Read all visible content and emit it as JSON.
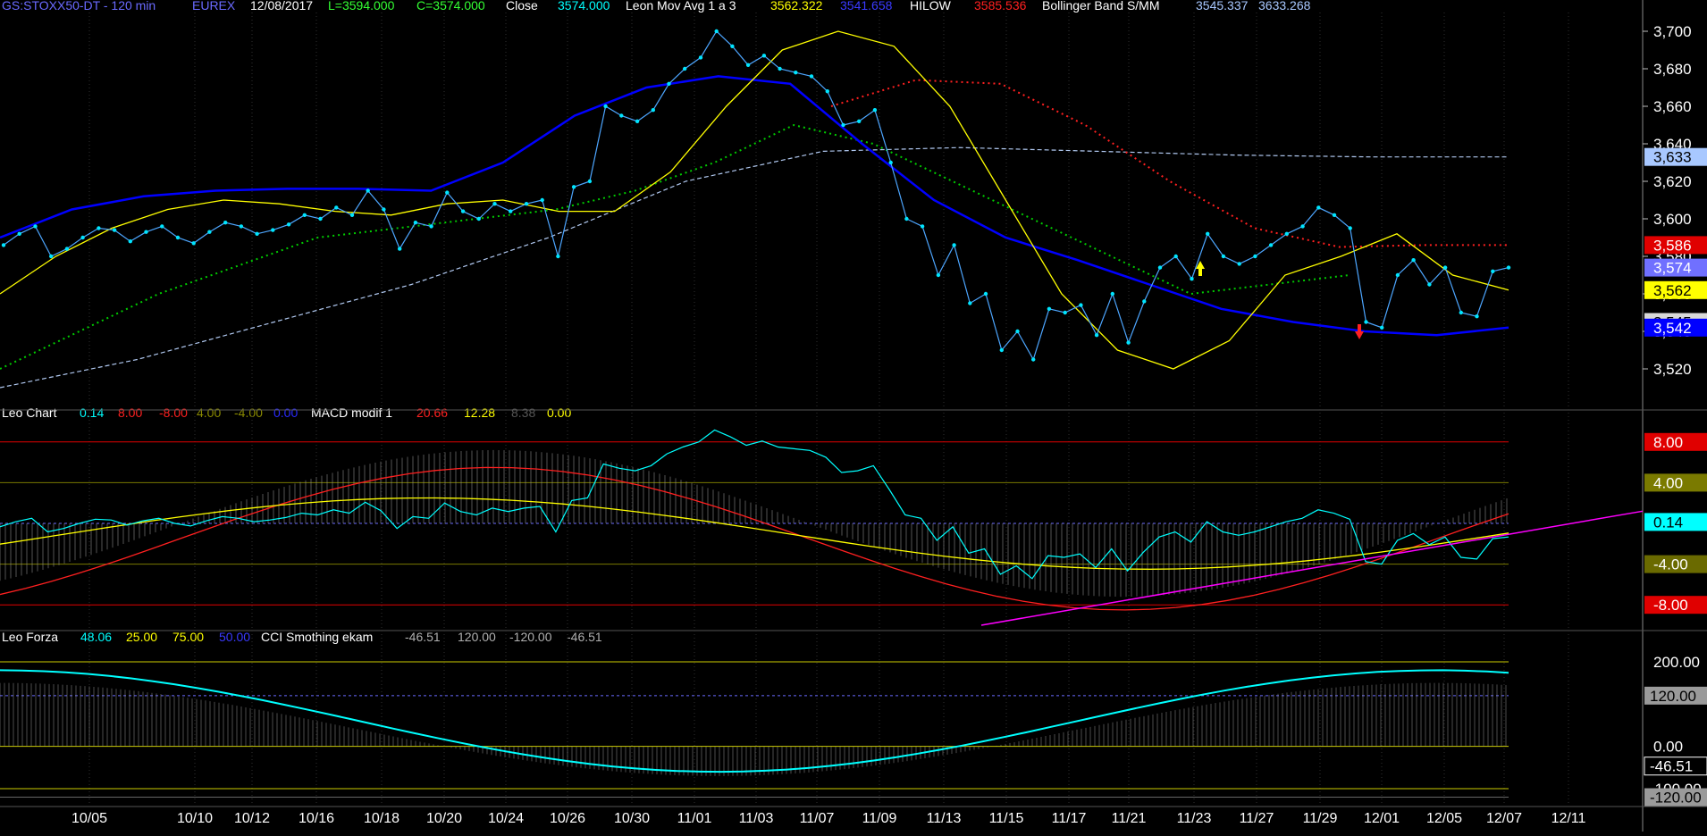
{
  "header": {
    "symbol": "GS:STOXX50-DT - 120 min",
    "exchange": "EUREX",
    "date": "12/08/2017",
    "low": "L=3594.000",
    "close_eq": "C=3574.000",
    "close_label": "Close",
    "close_val": "3574.000",
    "mavg_label": "Leon Mov Avg 1 a 3",
    "mavg_v1": "3562.322",
    "mavg_v2": "3541.658",
    "hilow_label": "HILOW",
    "hilow_val": "3585.536",
    "boll_label": "Bollinger Band S/MM",
    "boll_v1": "3545.337",
    "boll_v2": "3633.268"
  },
  "panel2_header": {
    "name": "Leo Chart",
    "v1": "0.14",
    "v2": "8.00",
    "v3": "-8.00",
    "v4": "4.00",
    "v5": "-4.00",
    "v6": "0.00",
    "macd_label": "MACD modif 1",
    "m1": "20.66",
    "m2": "12.28",
    "m3": "8.38",
    "m4": "0.00"
  },
  "panel3_header": {
    "name": "Leo Forza",
    "v1": "48.06",
    "v2": "25.00",
    "v3": "75.00",
    "v4": "50.00",
    "cci_label": "CCI Smothing ekam",
    "c1": "-46.51",
    "c2": "120.00",
    "c3": "-120.00",
    "c4": "-46.51"
  },
  "price_axis": {
    "ticks": [
      "3,700",
      "3,680",
      "3,660",
      "3,640",
      "3,620",
      "3,600",
      "3,580",
      "3,560",
      "3,540",
      "3,520"
    ],
    "tick_values": [
      3700,
      3680,
      3660,
      3640,
      3620,
      3600,
      3580,
      3560,
      3540,
      3520
    ],
    "badges": [
      {
        "text": "3,633",
        "value": 3633,
        "bg": "#a8c8ff",
        "fg": "#000"
      },
      {
        "text": "3,586",
        "value": 3586,
        "bg": "#e00000",
        "fg": "#fff"
      },
      {
        "text": "3,574",
        "value": 3574,
        "bg": "#7070ff",
        "fg": "#fff"
      },
      {
        "text": "3,562",
        "value": 3562,
        "bg": "#ffff00",
        "fg": "#000"
      },
      {
        "text": "3,545",
        "value": 3545,
        "bg": "#d8d8d8",
        "fg": "#000"
      },
      {
        "text": "3,542",
        "value": 3542,
        "bg": "#0000ff",
        "fg": "#fff"
      }
    ]
  },
  "osc_axis": {
    "badges": [
      {
        "text": "8.00",
        "value": 8,
        "bg": "#e00000",
        "fg": "#fff"
      },
      {
        "text": "4.00",
        "value": 4,
        "bg": "#7a7a00",
        "fg": "#fff"
      },
      {
        "text": "0.14",
        "value": 0.14,
        "bg": "#00ffff",
        "fg": "#000"
      },
      {
        "text": "-4.00",
        "value": -4,
        "bg": "#6a6a00",
        "fg": "#fff"
      },
      {
        "text": "-8.00",
        "value": -8,
        "bg": "#e00000",
        "fg": "#fff"
      }
    ]
  },
  "cci_axis": {
    "ticks": [
      "200.00",
      "0.00"
    ],
    "tick_values": [
      200,
      0
    ],
    "badges": [
      {
        "text": "120.00",
        "value": 120,
        "bg": "#9a9a9a",
        "fg": "#000"
      },
      {
        "text": "-46.51",
        "value": -46.51,
        "bg": "#000",
        "fg": "#fff",
        "border": "#ffffff"
      },
      {
        "text": "-100.00",
        "value": -100,
        "bg": "#000",
        "fg": "#fff"
      },
      {
        "text": "-120.00",
        "value": -120,
        "bg": "#9a9a9a",
        "fg": "#000"
      }
    ]
  },
  "colors": {
    "close": "#4da6ff",
    "close_dots": "#00e5ff",
    "mavg_fast": "#ffff00",
    "mavg_slow": "#0000ff",
    "hilow": "#ff2020",
    "boll_mid": "#00cc00",
    "boll_upper": "#b0c8f0",
    "leo_chart": "#00ffff",
    "macd": "#ff2020",
    "macd_sig": "#ffff00",
    "trendline": "#ff00ff",
    "cci": "#00ffff",
    "cci_red": "#ff2020",
    "hist": "#999999"
  },
  "chart_data": {
    "type": "line",
    "x_axis_labels": [
      "10/05",
      "10/10",
      "10/12",
      "10/16",
      "10/18",
      "10/20",
      "10/24",
      "10/26",
      "10/30",
      "11/01",
      "11/03",
      "11/07",
      "11/09",
      "11/13",
      "11/15",
      "11/17",
      "11/21",
      "11/23",
      "11/27",
      "11/29",
      "12/01",
      "12/05",
      "12/07",
      "12/11"
    ],
    "price_ylim": [
      3500,
      3710
    ],
    "close": [
      3586,
      3592,
      3596,
      3580,
      3584,
      3590,
      3595,
      3594,
      3588,
      3593,
      3596,
      3590,
      3587,
      3593,
      3598,
      3596,
      3592,
      3594,
      3597,
      3602,
      3600,
      3606,
      3602,
      3615,
      3605,
      3584,
      3598,
      3596,
      3614,
      3604,
      3600,
      3608,
      3604,
      3608,
      3610,
      3580,
      3617,
      3620,
      3660,
      3655,
      3652,
      3658,
      3672,
      3680,
      3686,
      3700,
      3692,
      3682,
      3687,
      3680,
      3678,
      3676,
      3668,
      3650,
      3652,
      3658,
      3630,
      3600,
      3596,
      3570,
      3586,
      3555,
      3560,
      3530,
      3540,
      3525,
      3552,
      3550,
      3554,
      3538,
      3560,
      3534,
      3556,
      3574,
      3580,
      3568,
      3592,
      3580,
      3576,
      3580,
      3586,
      3592,
      3596,
      3606,
      3602,
      3595,
      3545,
      3542,
      3570,
      3578,
      3565,
      3574,
      3550,
      3548,
      3572,
      3574
    ],
    "mavg_fast": [
      3560,
      3580,
      3595,
      3605,
      3610,
      3608,
      3604,
      3602,
      3608,
      3610,
      3604,
      3604,
      3625,
      3660,
      3690,
      3700,
      3692,
      3660,
      3610,
      3560,
      3530,
      3520,
      3535,
      3570,
      3580,
      3592,
      3570,
      3562
    ],
    "mavg_slow": [
      3590,
      3605,
      3612,
      3615,
      3616,
      3616,
      3615,
      3630,
      3655,
      3670,
      3676,
      3672,
      3640,
      3610,
      3590,
      3578,
      3565,
      3552,
      3545,
      3540,
      3538,
      3542
    ],
    "bollinger_mid": [
      3520,
      3540,
      3560,
      3575,
      3590,
      3595,
      3600,
      3605,
      3615,
      3630,
      3650,
      3640,
      3620,
      3600,
      3580,
      3560,
      3565,
      3570
    ],
    "bollinger_upper": [
      3510,
      3525,
      3545,
      3565,
      3590,
      3620,
      3636,
      3638,
      3636,
      3634,
      3633,
      3633
    ],
    "hilow": [
      3660,
      3674,
      3672,
      3650,
      3620,
      3595,
      3585,
      3586,
      3586
    ],
    "leo_chart_ylim": [
      -10,
      10
    ],
    "macd_ylim": [
      -10,
      10
    ],
    "cci_ylim": [
      -140,
      240
    ],
    "levels_osc": [
      8,
      4,
      0,
      -4,
      -8
    ],
    "levels_cci": [
      200,
      120,
      0,
      -100,
      -120
    ]
  }
}
